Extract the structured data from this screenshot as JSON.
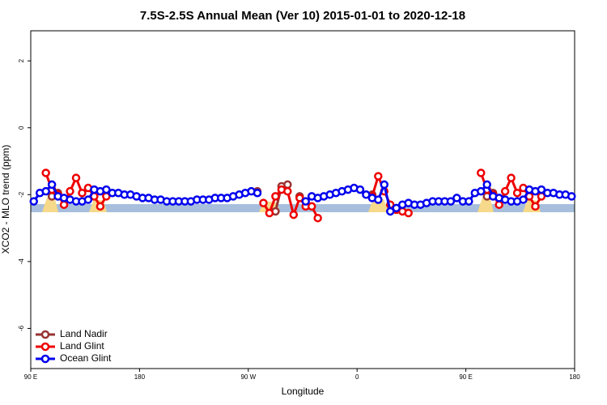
{
  "chart_data": {
    "type": "line",
    "title": "7.5S-2.5S Annual Mean (Ver 10)   2015-01-01 to 2020-12-18",
    "xlabel": "Longitude",
    "ylabel": "XCO2 - MLO trend (ppm)",
    "xlim": [
      90,
      540
    ],
    "ylim": [
      -7.2,
      2.9
    ],
    "xticks": [
      {
        "value": 90,
        "label": "90 E"
      },
      180,
      {
        "value": 270,
        "label": "90 W"
      },
      {
        "value": 360,
        "label": "0"
      },
      {
        "value": 450,
        "label": "90 E"
      },
      {
        "value": 540,
        "label": "180"
      }
    ],
    "yticks": [
      -6,
      -4,
      -2,
      0,
      2
    ],
    "legend": "bottomleft",
    "x": [
      92.5,
      97.5,
      102.5,
      107.5,
      112.5,
      117.5,
      122.5,
      127.5,
      132.5,
      137.5,
      142.5,
      147.5,
      152.5,
      157.5,
      162.5,
      167.5,
      172.5,
      177.5,
      182.5,
      187.5,
      192.5,
      197.5,
      202.5,
      207.5,
      212.5,
      217.5,
      222.5,
      227.5,
      232.5,
      237.5,
      242.5,
      247.5,
      252.5,
      257.5,
      262.5,
      267.5,
      272.5,
      277.5,
      282.5,
      287.5,
      292.5,
      297.5,
      302.5,
      307.5,
      312.5,
      317.5,
      322.5,
      327.5,
      332.5,
      337.5,
      342.5,
      347.5,
      352.5,
      357.5,
      362.5,
      367.5,
      372.5,
      377.5,
      382.5,
      387.5,
      392.5,
      397.5,
      402.5,
      407.5,
      412.5,
      417.5,
      422.5,
      427.5,
      432.5,
      437.5,
      442.5,
      447.5,
      452.5,
      457.5,
      462.5,
      467.5,
      472.5,
      477.5,
      482.5,
      487.5,
      492.5,
      497.5,
      502.5,
      507.5,
      512.5,
      517.5,
      522.5,
      527.5,
      532.5,
      537.5
    ],
    "series": [
      {
        "name": "Land Nadir",
        "color": "#993333",
        "values": [
          null,
          null,
          null,
          -2.05,
          -1.95,
          null,
          null,
          null,
          null,
          null,
          null,
          null,
          null,
          null,
          null,
          null,
          null,
          null,
          null,
          null,
          null,
          null,
          null,
          null,
          null,
          null,
          null,
          null,
          null,
          null,
          null,
          null,
          null,
          null,
          null,
          null,
          null,
          -1.9,
          null,
          null,
          -2.5,
          -1.75,
          -1.7,
          null,
          -2.05,
          null,
          null,
          null,
          null,
          null,
          null,
          null,
          null,
          null,
          null,
          null,
          -2.0,
          null,
          null,
          null,
          null,
          null,
          null,
          null,
          null,
          null,
          null,
          null,
          null,
          null,
          null,
          null,
          null,
          null,
          null,
          -2.05,
          -1.95,
          null,
          null,
          null,
          null,
          null,
          null,
          null,
          null,
          null,
          null,
          null,
          null,
          null
        ]
      },
      {
        "name": "Land Glint",
        "color": "#ee0000",
        "values": [
          null,
          null,
          -1.35,
          -1.85,
          -2.0,
          -2.3,
          -1.9,
          -1.5,
          -1.95,
          -1.8,
          -2.05,
          -2.35,
          -2.05,
          null,
          null,
          null,
          null,
          null,
          null,
          null,
          null,
          null,
          null,
          null,
          null,
          null,
          null,
          null,
          null,
          null,
          null,
          null,
          null,
          null,
          null,
          null,
          null,
          null,
          -2.25,
          -2.55,
          -2.05,
          -1.85,
          -1.9,
          -2.6,
          -2.1,
          -2.35,
          -2.35,
          -2.7,
          null,
          null,
          null,
          null,
          null,
          null,
          null,
          null,
          -2.05,
          -1.45,
          -1.9,
          -2.3,
          -2.45,
          -2.5,
          -2.55,
          null,
          null,
          null,
          null,
          null,
          null,
          null,
          null,
          null,
          null,
          null,
          -1.35,
          -1.85,
          -2.0,
          -2.3,
          -1.9,
          -1.5,
          -1.95,
          -1.8,
          -2.05,
          -2.35,
          -2.05,
          null,
          null,
          null,
          null,
          null
        ]
      },
      {
        "name": "Ocean Glint",
        "color": "#0000ee",
        "values": [
          -2.2,
          -1.95,
          -1.9,
          -1.7,
          -2.05,
          -2.1,
          -2.15,
          -2.2,
          -2.2,
          -2.15,
          -1.85,
          -1.9,
          -1.85,
          -1.95,
          -1.95,
          -2.0,
          -2.0,
          -2.05,
          -2.1,
          -2.1,
          -2.15,
          -2.15,
          -2.2,
          -2.2,
          -2.2,
          -2.2,
          -2.2,
          -2.15,
          -2.15,
          -2.15,
          -2.1,
          -2.1,
          -2.1,
          -2.05,
          -2.0,
          -1.95,
          -1.9,
          -1.95,
          null,
          null,
          null,
          null,
          null,
          null,
          null,
          -2.2,
          -2.05,
          -2.1,
          -2.05,
          -2.0,
          -1.95,
          -1.9,
          -1.85,
          -1.8,
          -1.85,
          -2.0,
          -2.1,
          -2.15,
          -1.7,
          -2.5,
          -2.4,
          -2.3,
          -2.25,
          -2.3,
          -2.3,
          -2.25,
          -2.2,
          -2.2,
          -2.2,
          -2.2,
          -2.1,
          -2.2,
          -2.2,
          -1.95,
          -1.9,
          -1.7,
          -2.05,
          -2.1,
          -2.15,
          -2.2,
          -2.2,
          -2.15,
          -1.85,
          -1.9,
          -1.85,
          -1.95,
          -1.95,
          -2.0,
          -2.0,
          -2.05
        ]
      }
    ]
  }
}
